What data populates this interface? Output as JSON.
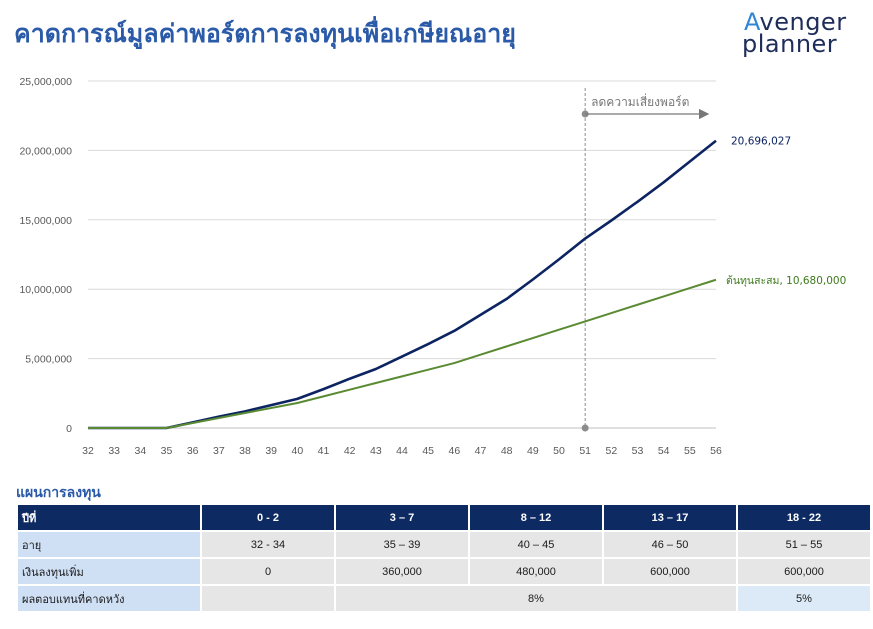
{
  "title": "คาดการณ์มูลค่าพอร์ตการลงทุนเพื่อเกษียณอายุ",
  "logo": {
    "line1_first": "A",
    "line1_rest": "venger",
    "line2": "planner"
  },
  "chart_data": {
    "type": "line",
    "x": [
      32,
      33,
      34,
      35,
      36,
      37,
      38,
      39,
      40,
      41,
      42,
      43,
      44,
      45,
      46,
      47,
      48,
      49,
      50,
      51,
      52,
      53,
      54,
      55,
      56
    ],
    "y_ticks": [
      "0",
      "5,000,000",
      "10,000,000",
      "15,000,000",
      "20,000,000",
      "25,000,000"
    ],
    "ylim": [
      0,
      25000000
    ],
    "series": [
      {
        "name": "",
        "color": "#0c2461",
        "values": [
          0,
          0,
          0,
          0,
          400000,
          820000,
          1200000,
          1650000,
          2100000,
          2800000,
          3550000,
          4250000,
          5150000,
          6050000,
          7000000,
          8150000,
          9300000,
          10700000,
          12150000,
          13650000,
          14950000,
          16300000,
          17700000,
          19200000,
          20696027
        ]
      },
      {
        "name": "ต้นทุนสะสม",
        "color": "#5a8a32",
        "values": [
          0,
          0,
          0,
          0,
          360000,
          720000,
          1080000,
          1440000,
          1800000,
          2280000,
          2760000,
          3240000,
          3720000,
          4200000,
          4680000,
          5280000,
          5880000,
          6480000,
          7080000,
          7680000,
          8280000,
          8880000,
          9480000,
          10080000,
          10680000
        ]
      }
    ],
    "end_labels": {
      "portfolio": "20,696,027",
      "cost": "ต้นทุนสะสม, 10,680,000"
    },
    "annotation": {
      "x": 51,
      "text": "ลดความเสี่ยงพอร์ต"
    },
    "grid": true
  },
  "plan": {
    "title": "แผนการลงทุน",
    "header": [
      "ปีที่",
      "0 - 2",
      "3 – 7",
      "8 – 12",
      "13 – 17",
      "18 - 22"
    ],
    "rows": {
      "age": [
        "อายุ",
        "32 - 34",
        "35 – 39",
        "40 – 45",
        "46 – 50",
        "51 – 55"
      ],
      "invest": [
        "เงินลงทุนเพิ่ม",
        "0",
        "360,000",
        "480,000",
        "600,000",
        "600,000"
      ],
      "return": {
        "label": "ผลตอบแทนที่คาดหวัง",
        "main": "8%",
        "last": "5%"
      }
    }
  }
}
